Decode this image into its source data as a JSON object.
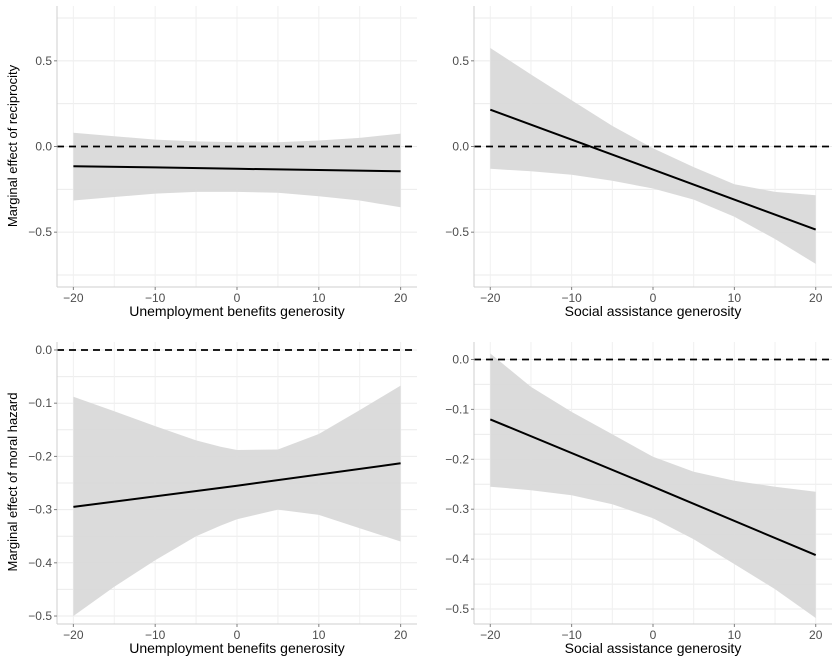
{
  "chart_data": [
    {
      "type": "line",
      "title": "",
      "xlabel": "Unemployment benefits generosity",
      "ylabel": "Marginal effect of reciprocity",
      "xlim": [
        -22,
        22
      ],
      "ylim": [
        -0.82,
        0.82
      ],
      "x_ticks": [
        -20,
        -10,
        0,
        10,
        20
      ],
      "x_tick_labels": [
        "−20",
        "−10",
        "0",
        "10",
        "20"
      ],
      "y_ticks": [
        0.5,
        0.0,
        -0.5
      ],
      "y_tick_labels": [
        "0.5",
        "0.0",
        "−0.5"
      ],
      "reference_line": 0,
      "grid": true,
      "series": [
        {
          "x": [
            -20,
            -10,
            0,
            10,
            20
          ],
          "y": [
            -0.115,
            -0.122,
            -0.13,
            -0.137,
            -0.145
          ]
        }
      ],
      "confidence_band": {
        "x": [
          -20,
          -15,
          -10,
          -5,
          0,
          5,
          10,
          15,
          20
        ],
        "upper": [
          0.08,
          0.06,
          0.04,
          0.03,
          0.025,
          0.025,
          0.035,
          0.05,
          0.075
        ],
        "lower": [
          -0.315,
          -0.295,
          -0.275,
          -0.265,
          -0.265,
          -0.27,
          -0.29,
          -0.315,
          -0.355
        ]
      }
    },
    {
      "type": "line",
      "title": "",
      "xlabel": "Social assistance generosity",
      "ylabel": "",
      "xlim": [
        -22,
        22
      ],
      "ylim": [
        -0.82,
        0.82
      ],
      "x_ticks": [
        -20,
        -10,
        0,
        10,
        20
      ],
      "x_tick_labels": [
        "−20",
        "−10",
        "0",
        "10",
        "20"
      ],
      "y_ticks": [
        0.5,
        0.0,
        -0.5
      ],
      "y_tick_labels": [
        "0.5",
        "0.0",
        "−0.5"
      ],
      "reference_line": 0,
      "grid": true,
      "series": [
        {
          "x": [
            -20,
            0,
            20
          ],
          "y": [
            0.215,
            -0.135,
            -0.485
          ]
        }
      ],
      "confidence_band": {
        "x": [
          -20,
          -15,
          -10,
          -5,
          0,
          5,
          10,
          15,
          20
        ],
        "upper": [
          0.575,
          0.42,
          0.27,
          0.12,
          -0.01,
          -0.12,
          -0.22,
          -0.265,
          -0.285
        ],
        "lower": [
          -0.13,
          -0.145,
          -0.165,
          -0.2,
          -0.245,
          -0.31,
          -0.41,
          -0.54,
          -0.685
        ]
      }
    },
    {
      "type": "line",
      "title": "",
      "xlabel": "Unemployment benefits generosity",
      "ylabel": "Marginal effect of moral hazard",
      "xlim": [
        -22,
        22
      ],
      "ylim": [
        -0.515,
        0.015
      ],
      "x_ticks": [
        -20,
        -10,
        0,
        10,
        20
      ],
      "x_tick_labels": [
        "−20",
        "−10",
        "0",
        "10",
        "20"
      ],
      "y_ticks": [
        0.0,
        -0.1,
        -0.2,
        -0.3,
        -0.4,
        -0.5
      ],
      "y_tick_labels": [
        "0.0",
        "−0.1",
        "−0.2",
        "−0.3",
        "−0.4",
        "−0.5"
      ],
      "reference_line": 0,
      "grid": true,
      "series": [
        {
          "x": [
            -20,
            0,
            20
          ],
          "y": [
            -0.295,
            -0.255,
            -0.213
          ]
        }
      ],
      "confidence_band": {
        "x": [
          -20,
          -15,
          -10,
          -5,
          -2,
          0,
          5,
          10,
          15,
          20
        ],
        "upper": [
          -0.088,
          -0.115,
          -0.143,
          -0.17,
          -0.182,
          -0.188,
          -0.187,
          -0.158,
          -0.113,
          -0.067
        ],
        "lower": [
          -0.5,
          -0.445,
          -0.395,
          -0.35,
          -0.33,
          -0.318,
          -0.3,
          -0.31,
          -0.335,
          -0.36
        ]
      }
    },
    {
      "type": "line",
      "title": "",
      "xlabel": "Social assistance generosity",
      "ylabel": "",
      "xlim": [
        -22,
        22
      ],
      "ylim": [
        -0.53,
        0.035
      ],
      "x_ticks": [
        -20,
        -10,
        0,
        10,
        20
      ],
      "x_tick_labels": [
        "−20",
        "−10",
        "0",
        "10",
        "20"
      ],
      "y_ticks": [
        0.0,
        -0.1,
        -0.2,
        -0.3,
        -0.4,
        -0.5
      ],
      "y_tick_labels": [
        "0.0",
        "−0.1",
        "−0.2",
        "−0.3",
        "−0.4",
        "−0.5"
      ],
      "reference_line": 0,
      "grid": true,
      "series": [
        {
          "x": [
            -20,
            0,
            20
          ],
          "y": [
            -0.12,
            -0.255,
            -0.392
          ]
        }
      ],
      "confidence_band": {
        "x": [
          -20,
          -15,
          -10,
          -5,
          0,
          5,
          10,
          15,
          20
        ],
        "upper": [
          0.012,
          -0.055,
          -0.105,
          -0.15,
          -0.195,
          -0.225,
          -0.243,
          -0.255,
          -0.265
        ],
        "lower": [
          -0.255,
          -0.262,
          -0.272,
          -0.29,
          -0.318,
          -0.36,
          -0.41,
          -0.46,
          -0.518
        ]
      }
    }
  ]
}
